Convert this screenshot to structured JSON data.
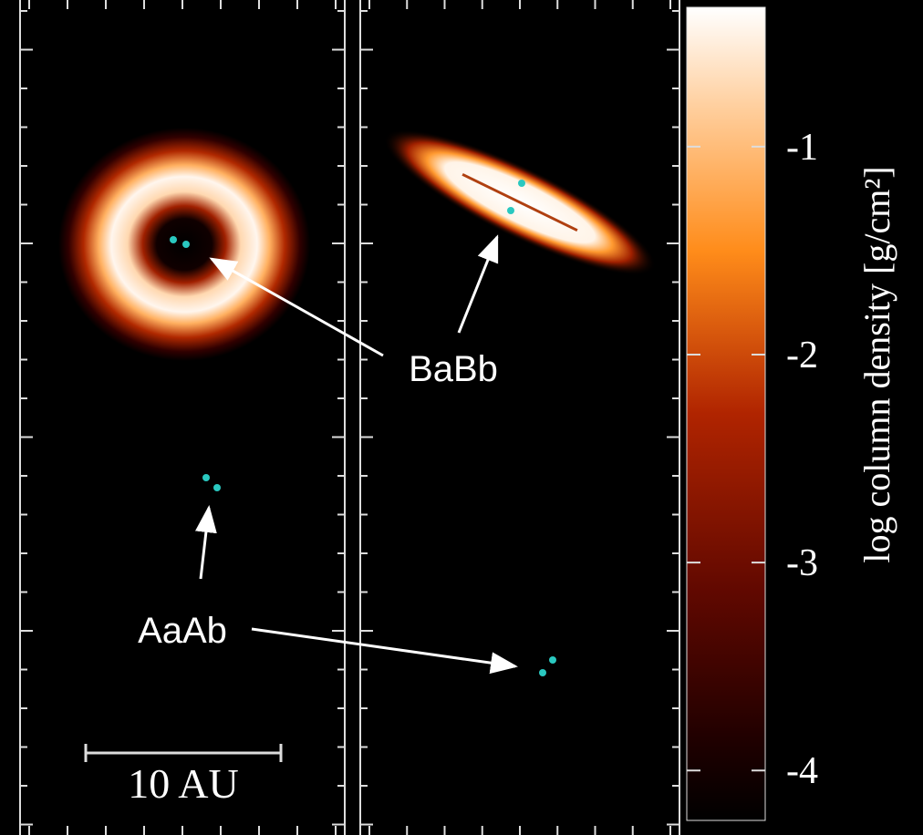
{
  "panels": {
    "left_annotations": [
      "BaBb",
      "AaAb"
    ],
    "scale_bar": "10 AU"
  },
  "colorbar": {
    "label": "log column density [g/cm²]",
    "range": [
      -0.33,
      -4.24
    ],
    "ticks": [
      -1,
      -2,
      -3,
      -4
    ]
  }
}
